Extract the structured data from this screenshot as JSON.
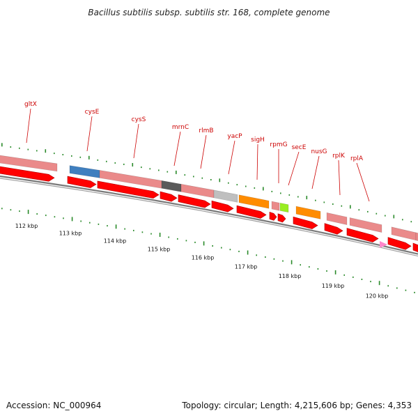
{
  "title": "Bacillus subtilis subsp. subtilis str. 168, complete genome",
  "footer": {
    "accession": "Accession: NC_000964",
    "summary": "Topology: circular; Length: 4,215,606 bp; Genes: 4,353"
  },
  "gene_labels": [
    "gltX",
    "cysE",
    "cysS",
    "mrnC",
    "rlmB",
    "yacP",
    "sigH",
    "rpmG",
    "secE",
    "nusG",
    "rplK",
    "rplA"
  ],
  "scale": {
    "unit": "kbp",
    "positions": [
      112,
      113,
      114,
      115,
      116,
      117,
      118,
      119,
      120
    ],
    "labels": [
      "112 kbp",
      "113 kbp",
      "114 kbp",
      "115 kbp",
      "116 kbp",
      "117 kbp",
      "118 kbp",
      "119 kbp",
      "120 kbp"
    ]
  },
  "colors": {
    "gene_label": "#cc0000",
    "cds_arrow": "#ff0000",
    "tick": "#2a8a2a",
    "backbone": "#7a7a7a",
    "feature_pink": "#ea8a8a",
    "feature_blue": "#3f7fbf",
    "feature_dark": "#5a5a5a",
    "feature_gray": "#bfbfbf",
    "feature_orange": "#ff8c00",
    "feature_green": "#99ee22",
    "feature_magenta": "#ff88cc"
  }
}
